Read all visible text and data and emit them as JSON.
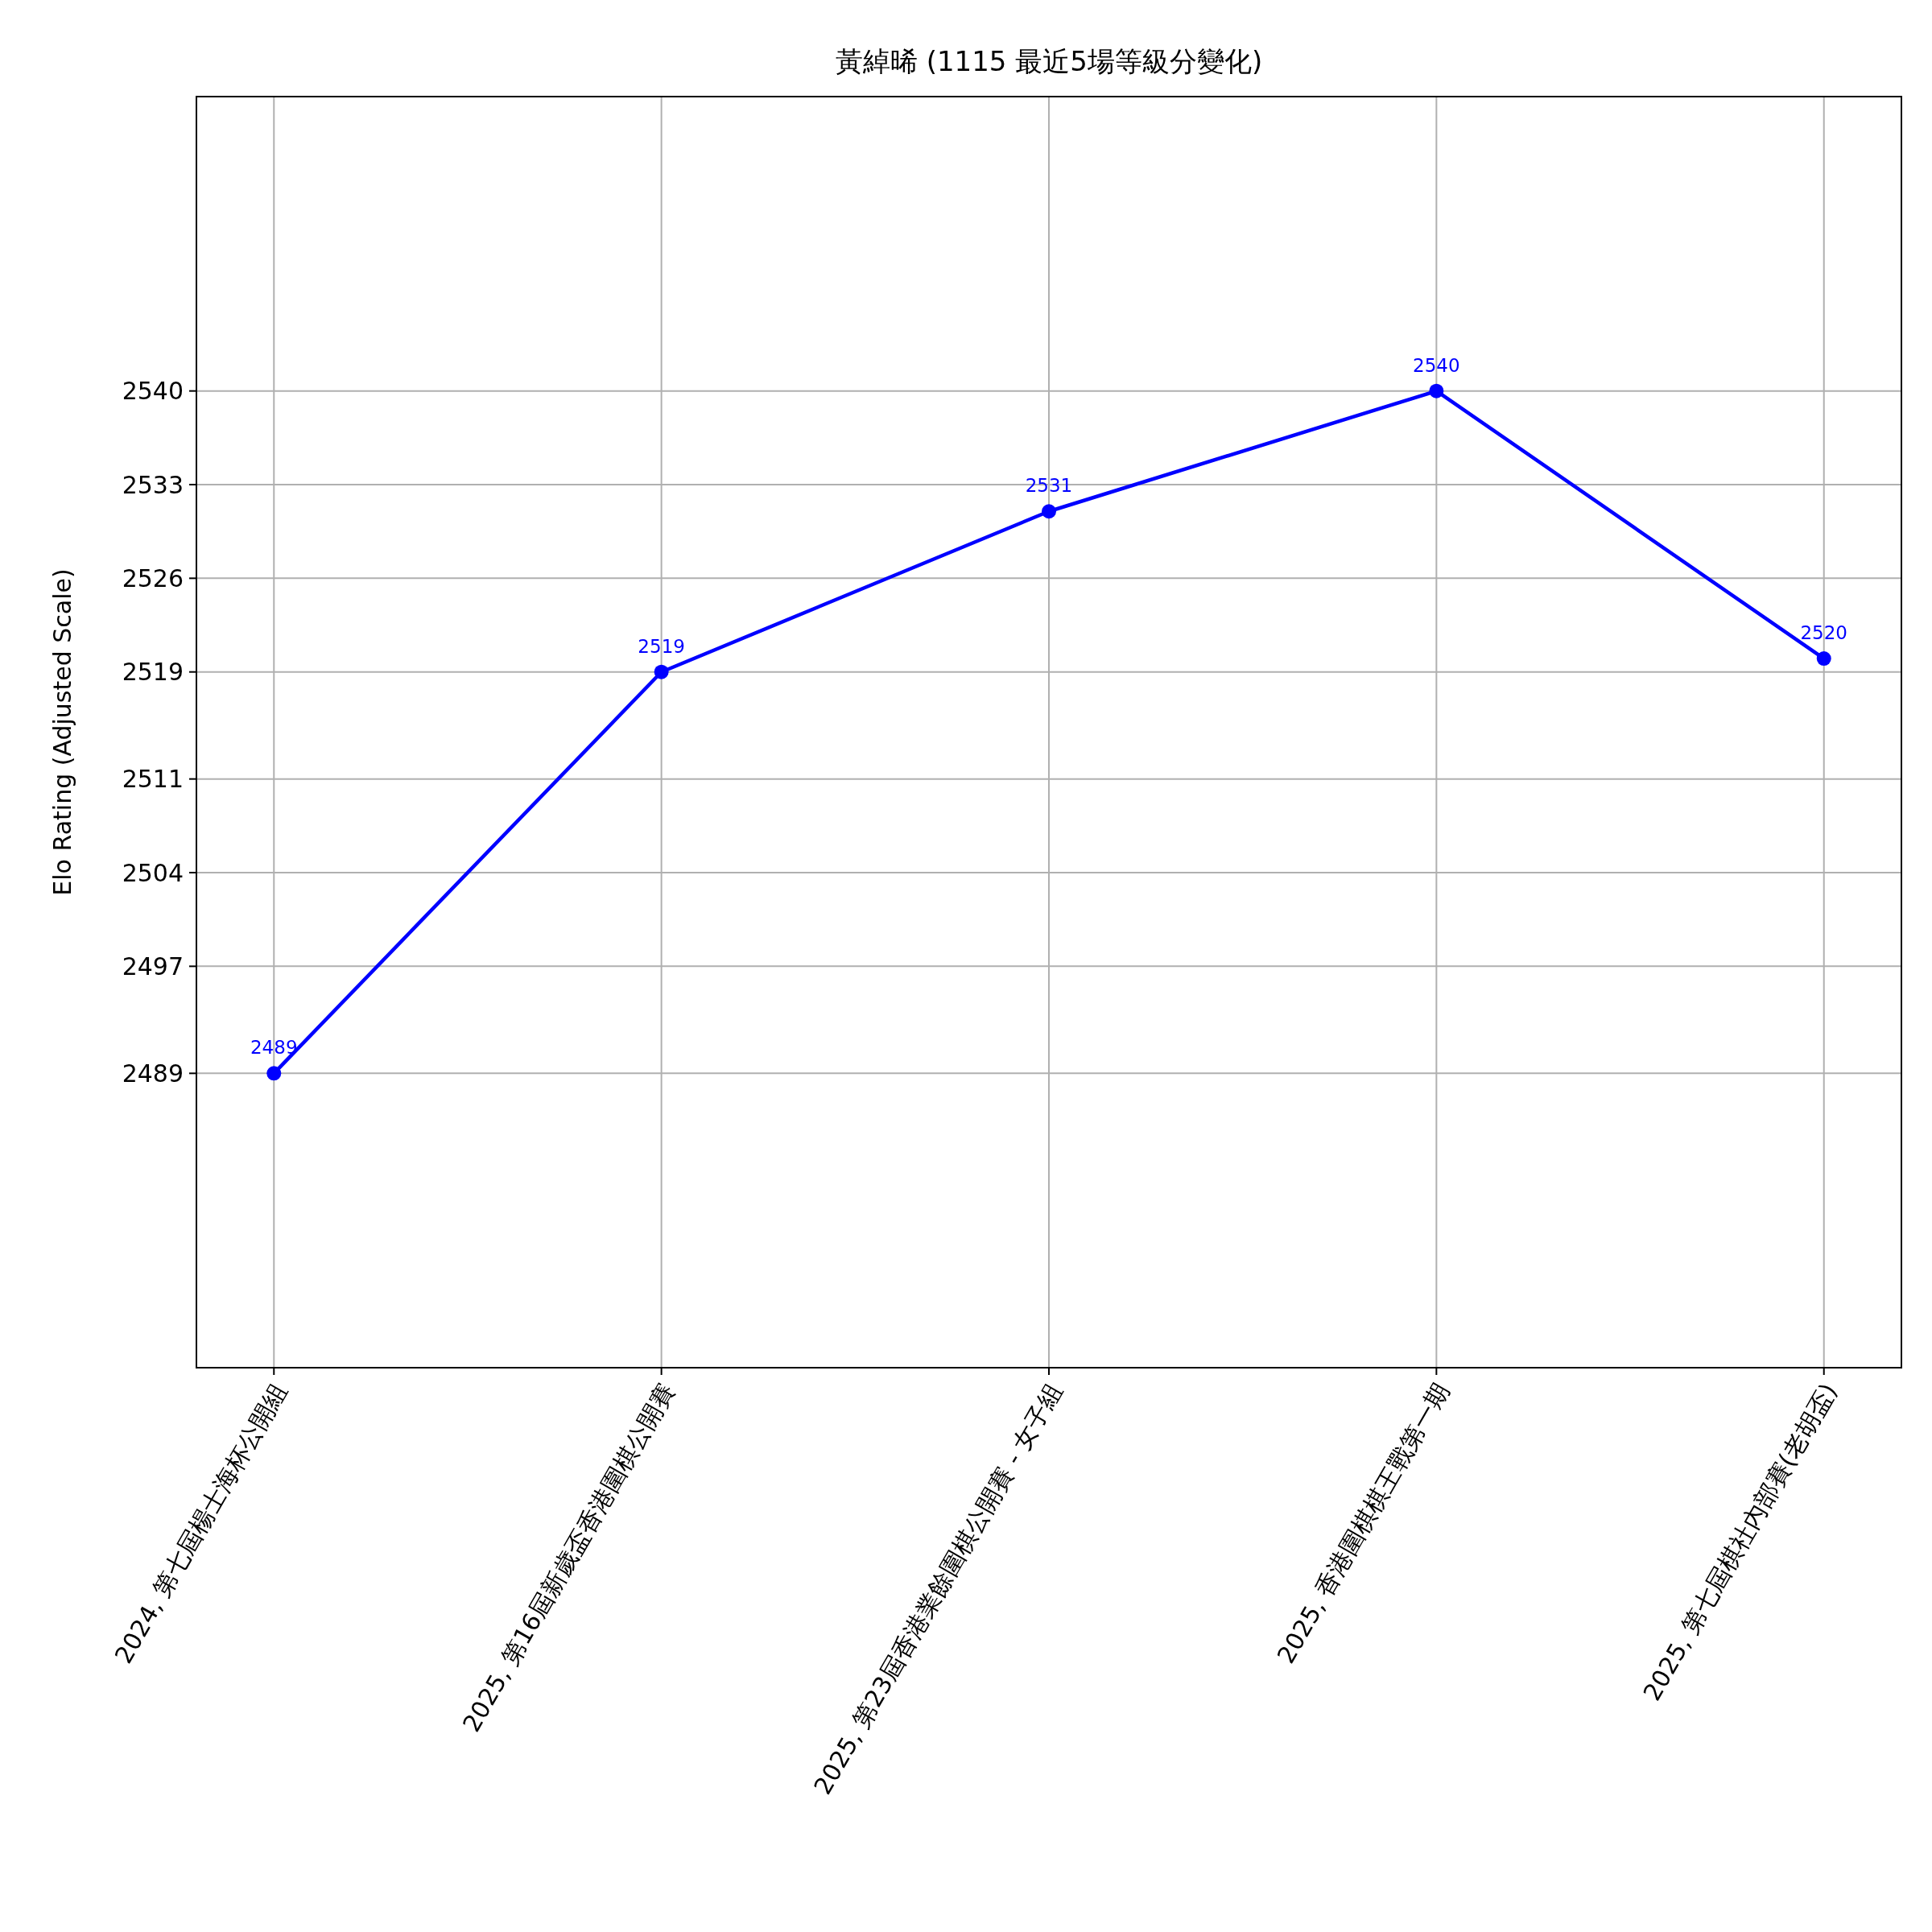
{
  "chart_data": {
    "type": "line",
    "title": "黃綽晞 (1115 最近5場等級分變化)",
    "ylabel": "Elo Rating (Adjusted Scale)",
    "categories": [
      "2024, 第七屆楊士海杯公開組",
      "2025, 第16屆新歲盃香港圍棋公開賽",
      "2025, 第23屆香港業餘圍棋公開賽 - 女子組",
      "2025, 香港圍棋棋王戰第一期",
      "2025, 第七屆棋社內部賽(老胡盃)"
    ],
    "series": [
      {
        "color": "#0000ff",
        "values": [
          2489,
          2519,
          2531,
          2540,
          2520
        ]
      }
    ],
    "ylim": [
      2467,
      2562
    ],
    "yticks": [
      2489,
      2497,
      2504,
      2511,
      2519,
      2526,
      2533,
      2540
    ],
    "grid": true,
    "marker": "circle",
    "line_style": "solid",
    "data_labels": true
  }
}
